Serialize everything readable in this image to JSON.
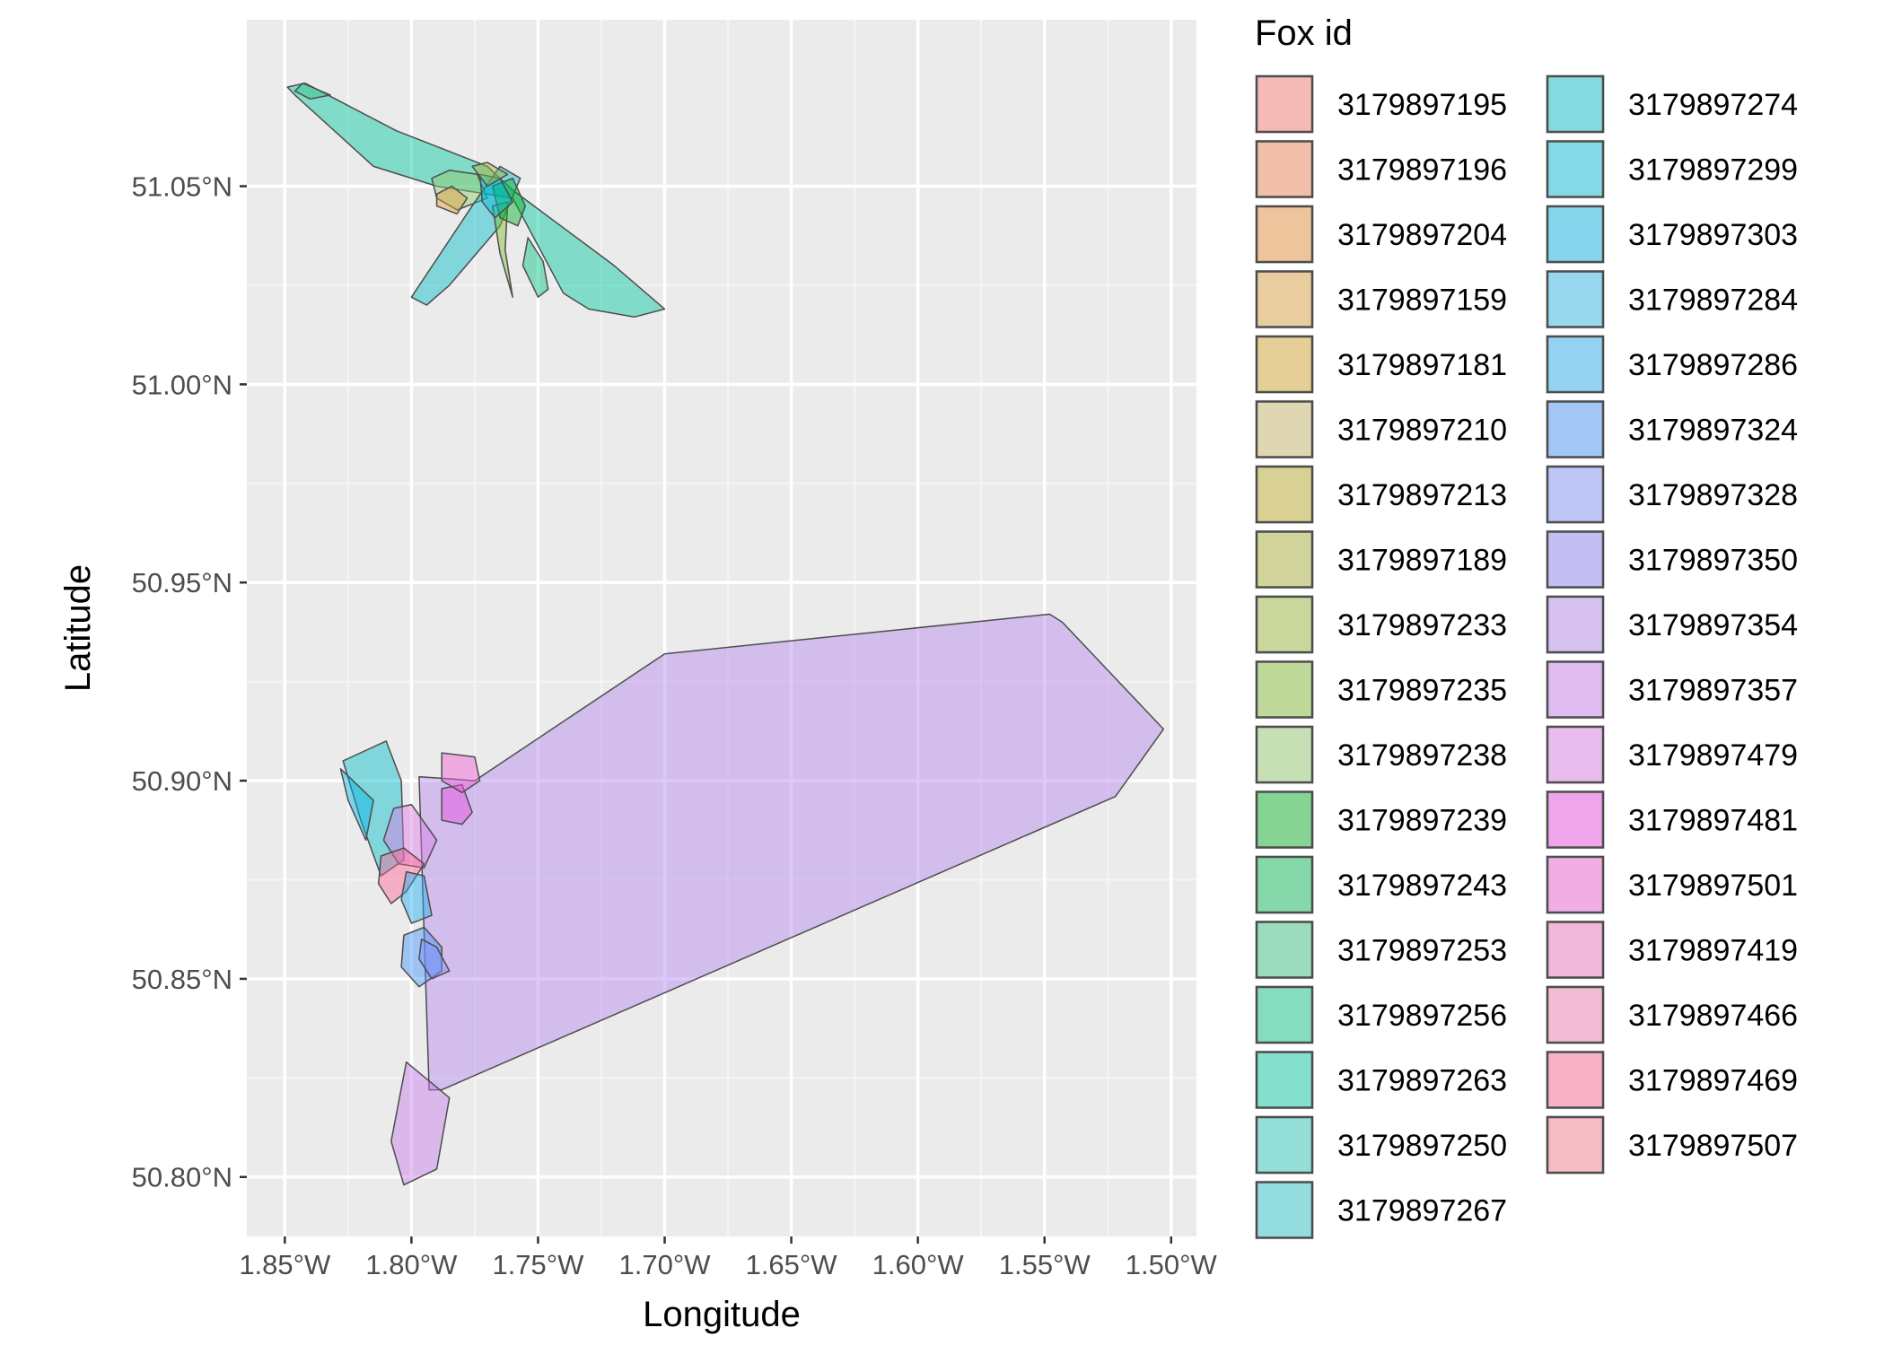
{
  "chart_data": {
    "type": "map",
    "xlabel": "Longitude",
    "ylabel": "Latitude",
    "xlim": [
      -1.865,
      -1.49
    ],
    "ylim": [
      50.785,
      51.092
    ],
    "x_ticks": [
      -1.85,
      -1.8,
      -1.75,
      -1.7,
      -1.65,
      -1.6,
      -1.55,
      -1.5
    ],
    "x_tick_labels": [
      "1.85°W",
      "1.80°W",
      "1.75°W",
      "1.70°W",
      "1.65°W",
      "1.60°W",
      "1.55°W",
      "1.50°W"
    ],
    "y_ticks": [
      50.8,
      50.85,
      50.9,
      50.95,
      51.0,
      51.05
    ],
    "y_tick_labels": [
      "50.80°N",
      "50.85°N",
      "50.90°N",
      "50.95°N",
      "51.00°N",
      "51.05°N"
    ],
    "grid": true,
    "legend": {
      "title": "Fox id",
      "placement": "right",
      "entries": [
        {
          "id": "3179897195",
          "color": "#f8766d"
        },
        {
          "id": "3179897196",
          "color": "#f07f4f"
        },
        {
          "id": "3179897204",
          "color": "#e88b32"
        },
        {
          "id": "3179897159",
          "color": "#e0a03a"
        },
        {
          "id": "3179897181",
          "color": "#d4a526"
        },
        {
          "id": "3179897210",
          "color": "#c8b464"
        },
        {
          "id": "3179897213",
          "color": "#b8a820"
        },
        {
          "id": "3179897189",
          "color": "#a8b030"
        },
        {
          "id": "3179897233",
          "color": "#98b838"
        },
        {
          "id": "3179897235",
          "color": "#80bb30"
        },
        {
          "id": "3179897238",
          "color": "#90c868"
        },
        {
          "id": "3179897239",
          "color": "#00b020"
        },
        {
          "id": "3179897243",
          "color": "#00b850"
        },
        {
          "id": "3179897253",
          "color": "#30c080"
        },
        {
          "id": "3179897256",
          "color": "#00c080"
        },
        {
          "id": "3179897263",
          "color": "#00c8a0"
        },
        {
          "id": "3179897250",
          "color": "#20c8b8"
        },
        {
          "id": "3179897267",
          "color": "#20c4c8"
        },
        {
          "id": "3179897274",
          "color": "#00bcc8"
        },
        {
          "id": "3179897299",
          "color": "#00b8d8"
        },
        {
          "id": "3179897303",
          "color": "#00b4e4"
        },
        {
          "id": "3179897284",
          "color": "#28b8e8"
        },
        {
          "id": "3179897286",
          "color": "#20acf0"
        },
        {
          "id": "3179897324",
          "color": "#4090f8"
        },
        {
          "id": "3179897328",
          "color": "#7c90f8"
        },
        {
          "id": "3179897350",
          "color": "#8c80f4"
        },
        {
          "id": "3179897354",
          "color": "#b486f0"
        },
        {
          "id": "3179897357",
          "color": "#c87aec"
        },
        {
          "id": "3179897479",
          "color": "#dc7ae4"
        },
        {
          "id": "3179897481",
          "color": "#e848e0"
        },
        {
          "id": "3179897501",
          "color": "#f05ad2"
        },
        {
          "id": "3179897419",
          "color": "#f070c0"
        },
        {
          "id": "3179897466",
          "color": "#f478b0"
        },
        {
          "id": "3179897469",
          "color": "#fc6494"
        },
        {
          "id": "3179897507",
          "color": "#f47c8a"
        }
      ]
    },
    "polygons": [
      {
        "id": "3179897263",
        "points": [
          [
            -1.849,
            51.075
          ],
          [
            -1.842,
            51.076
          ],
          [
            -1.83,
            51.072
          ],
          [
            -1.806,
            51.064
          ],
          [
            -1.77,
            51.055
          ],
          [
            -1.76,
            51.049
          ],
          [
            -1.72,
            51.03
          ],
          [
            -1.7,
            51.019
          ],
          [
            -1.712,
            51.017
          ],
          [
            -1.73,
            51.019
          ],
          [
            -1.74,
            51.023
          ],
          [
            -1.76,
            51.047
          ],
          [
            -1.79,
            51.05
          ],
          [
            -1.815,
            51.055
          ],
          [
            -1.846,
            51.073
          ]
        ]
      },
      {
        "id": "3179897253",
        "points": [
          [
            -1.843,
            51.076
          ],
          [
            -1.832,
            51.073
          ],
          [
            -1.84,
            51.072
          ],
          [
            -1.846,
            51.074
          ]
        ]
      },
      {
        "id": "3179897238",
        "points": [
          [
            -1.792,
            51.052
          ],
          [
            -1.785,
            51.054
          ],
          [
            -1.774,
            51.053
          ],
          [
            -1.77,
            51.047
          ],
          [
            -1.782,
            51.044
          ],
          [
            -1.79,
            51.047
          ]
        ]
      },
      {
        "id": "3179897159",
        "points": [
          [
            -1.79,
            51.045
          ],
          [
            -1.782,
            51.043
          ],
          [
            -1.778,
            51.047
          ],
          [
            -1.784,
            51.05
          ],
          [
            -1.79,
            51.048
          ]
        ]
      },
      {
        "id": "3179897274",
        "points": [
          [
            -1.794,
            51.02
          ],
          [
            -1.8,
            51.022
          ],
          [
            -1.775,
            51.046
          ],
          [
            -1.765,
            51.055
          ],
          [
            -1.757,
            51.052
          ],
          [
            -1.765,
            51.04
          ],
          [
            -1.785,
            51.025
          ]
        ]
      },
      {
        "id": "3179897235",
        "points": [
          [
            -1.765,
            51.033
          ],
          [
            -1.76,
            51.022
          ],
          [
            -1.763,
            51.034
          ],
          [
            -1.762,
            51.046
          ],
          [
            -1.768,
            51.045
          ]
        ]
      },
      {
        "id": "3179897256",
        "points": [
          [
            -1.754,
            51.037
          ],
          [
            -1.748,
            51.031
          ],
          [
            -1.746,
            51.024
          ],
          [
            -1.75,
            51.022
          ],
          [
            -1.756,
            51.03
          ]
        ]
      },
      {
        "id": "3179897239",
        "points": [
          [
            -1.768,
            51.05
          ],
          [
            -1.76,
            51.052
          ],
          [
            -1.755,
            51.045
          ],
          [
            -1.758,
            51.04
          ],
          [
            -1.765,
            51.042
          ]
        ]
      },
      {
        "id": "3179897299",
        "points": [
          [
            -1.773,
            51.053
          ],
          [
            -1.765,
            51.052
          ],
          [
            -1.76,
            51.046
          ],
          [
            -1.767,
            51.042
          ],
          [
            -1.772,
            51.046
          ]
        ]
      },
      {
        "id": "3179897189",
        "points": [
          [
            -1.776,
            51.055
          ],
          [
            -1.77,
            51.056
          ],
          [
            -1.762,
            51.053
          ],
          [
            -1.77,
            51.05
          ]
        ]
      },
      {
        "id": "3179897354",
        "points": [
          [
            -1.793,
            50.822
          ],
          [
            -1.797,
            50.901
          ],
          [
            -1.775,
            50.9
          ],
          [
            -1.7,
            50.932
          ],
          [
            -1.548,
            50.942
          ],
          [
            -1.543,
            50.94
          ],
          [
            -1.503,
            50.913
          ],
          [
            -1.522,
            50.896
          ],
          [
            -1.788,
            50.822
          ]
        ]
      },
      {
        "id": "3179897357",
        "points": [
          [
            -1.802,
            50.829
          ],
          [
            -1.785,
            50.82
          ],
          [
            -1.79,
            50.802
          ],
          [
            -1.803,
            50.798
          ],
          [
            -1.808,
            50.809
          ]
        ]
      },
      {
        "id": "3179897274",
        "points": [
          [
            -1.827,
            50.905
          ],
          [
            -1.81,
            50.91
          ],
          [
            -1.804,
            50.9
          ],
          [
            -1.803,
            50.88
          ],
          [
            -1.812,
            50.876
          ],
          [
            -1.82,
            50.89
          ]
        ]
      },
      {
        "id": "3179897303",
        "points": [
          [
            -1.828,
            50.903
          ],
          [
            -1.815,
            50.895
          ],
          [
            -1.818,
            50.885
          ],
          [
            -1.825,
            50.895
          ]
        ]
      },
      {
        "id": "3179897479",
        "points": [
          [
            -1.807,
            50.893
          ],
          [
            -1.8,
            50.894
          ],
          [
            -1.79,
            50.885
          ],
          [
            -1.795,
            50.878
          ],
          [
            -1.805,
            50.879
          ],
          [
            -1.811,
            50.885
          ]
        ]
      },
      {
        "id": "3179897469",
        "points": [
          [
            -1.812,
            50.881
          ],
          [
            -1.803,
            50.883
          ],
          [
            -1.795,
            50.879
          ],
          [
            -1.802,
            50.872
          ],
          [
            -1.808,
            50.869
          ],
          [
            -1.813,
            50.874
          ]
        ]
      },
      {
        "id": "3179897286",
        "points": [
          [
            -1.802,
            50.877
          ],
          [
            -1.795,
            50.876
          ],
          [
            -1.792,
            50.866
          ],
          [
            -1.8,
            50.864
          ],
          [
            -1.804,
            50.87
          ]
        ]
      },
      {
        "id": "3179897324",
        "points": [
          [
            -1.803,
            50.861
          ],
          [
            -1.795,
            50.863
          ],
          [
            -1.788,
            50.858
          ],
          [
            -1.788,
            50.852
          ],
          [
            -1.797,
            50.848
          ],
          [
            -1.804,
            50.853
          ]
        ]
      },
      {
        "id": "3179897328",
        "points": [
          [
            -1.796,
            50.86
          ],
          [
            -1.79,
            50.858
          ],
          [
            -1.785,
            50.852
          ],
          [
            -1.792,
            50.85
          ],
          [
            -1.797,
            50.855
          ]
        ]
      },
      {
        "id": "3179897481",
        "points": [
          [
            -1.788,
            50.898
          ],
          [
            -1.78,
            50.899
          ],
          [
            -1.776,
            50.892
          ],
          [
            -1.78,
            50.889
          ],
          [
            -1.788,
            50.89
          ]
        ]
      },
      {
        "id": "3179897501",
        "points": [
          [
            -1.788,
            50.907
          ],
          [
            -1.775,
            50.906
          ],
          [
            -1.773,
            50.9
          ],
          [
            -1.78,
            50.897
          ],
          [
            -1.788,
            50.9
          ]
        ]
      }
    ]
  }
}
